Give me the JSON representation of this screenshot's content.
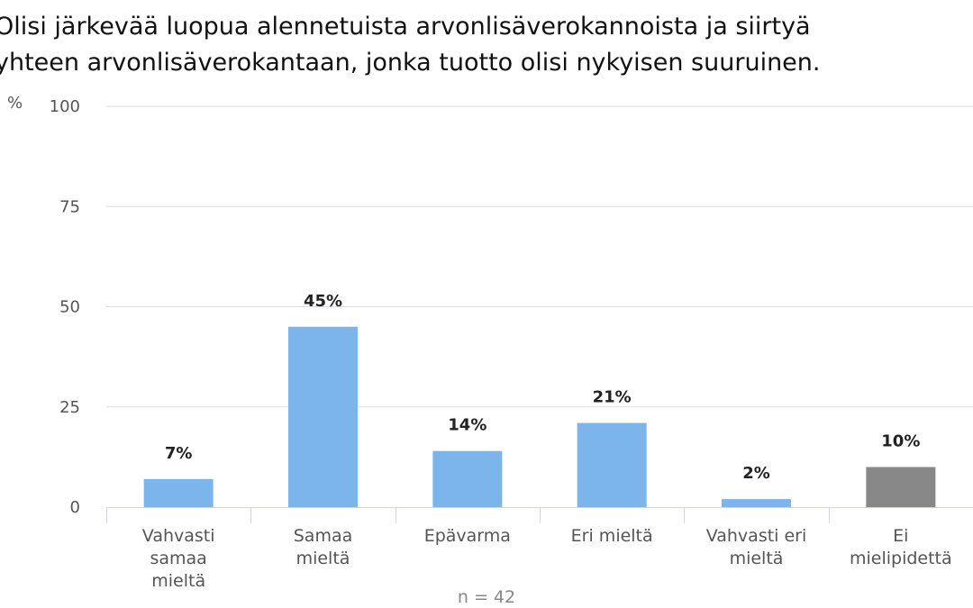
{
  "chart_data": {
    "type": "bar",
    "title_lines": [
      "Olisi järkevää luopua alennetuista arvonlisäverokannoista ja siirtyä",
      "yhteen arvonlisäverokantaan, jonka tuotto olisi nykyisen suuruinen."
    ],
    "ylabel": "%",
    "ylim": [
      0,
      100
    ],
    "yticks": [
      0,
      25,
      50,
      75,
      100
    ],
    "categories": [
      [
        "Vahvasti",
        "samaa",
        "mieltä"
      ],
      [
        "Samaa",
        "mieltä"
      ],
      [
        "Epävarma"
      ],
      [
        "Eri mieltä"
      ],
      [
        "Vahvasti eri",
        "mieltä"
      ],
      [
        "Ei",
        "mielipidettä"
      ]
    ],
    "values": [
      7,
      45,
      14,
      21,
      2,
      10
    ],
    "data_labels": [
      "7%",
      "45%",
      "14%",
      "21%",
      "2%",
      "10%"
    ],
    "bar_colors": [
      "#7cb5ec",
      "#7cb5ec",
      "#7cb5ec",
      "#7cb5ec",
      "#7cb5ec",
      "#888888"
    ],
    "grid": true,
    "legend": "none",
    "footnote": "n = 42"
  }
}
